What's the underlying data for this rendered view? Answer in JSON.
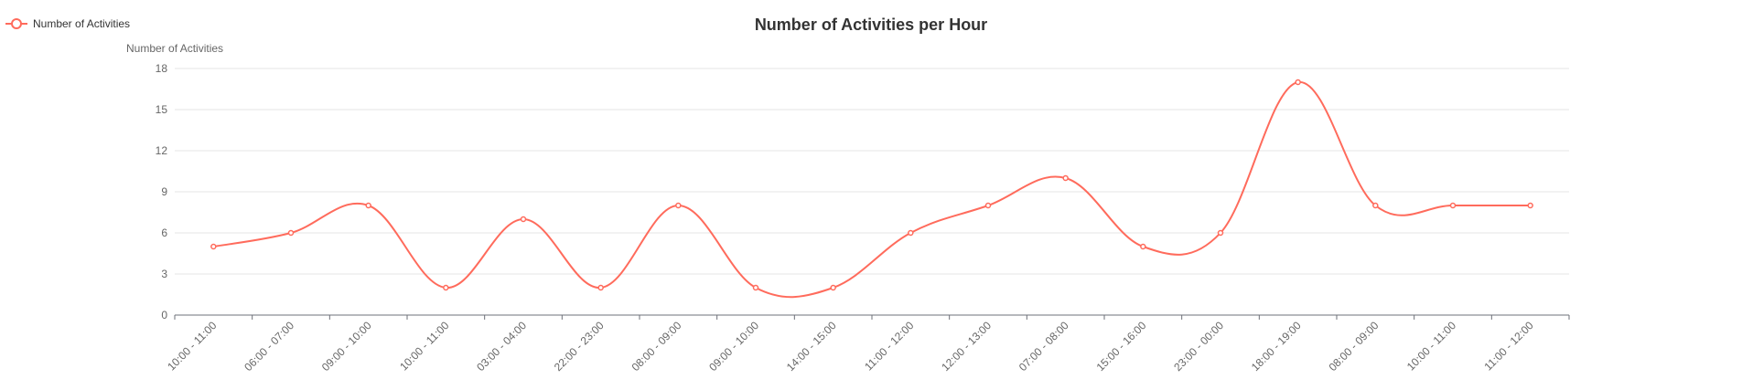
{
  "chart_data": {
    "type": "line",
    "title": "Number of Activities per Hour",
    "xlabel": "",
    "ylabel": "Number of Activities",
    "ylim": [
      0,
      18
    ],
    "yticks": [
      0,
      3,
      6,
      9,
      12,
      15,
      18
    ],
    "grid": true,
    "smooth": true,
    "legend_position": "top-left",
    "categories": [
      "10:00 - 11:00",
      "06:00 - 07:00",
      "09:00 - 10:00",
      "10:00 - 11:00",
      "03:00 - 04:00",
      "22:00 - 23:00",
      "08:00 - 09:00",
      "09:00 - 10:00",
      "14:00 - 15:00",
      "11:00 - 12:00",
      "12:00 - 13:00",
      "07:00 - 08:00",
      "15:00 - 16:00",
      "23:00 - 00:00",
      "18:00 - 19:00",
      "08:00 - 09:00",
      "10:00 - 11:00",
      "11:00 - 12:00"
    ],
    "series": [
      {
        "name": "Number of Activities",
        "color": "#ff6b5c",
        "values": [
          5,
          6,
          8,
          2,
          7,
          2,
          8,
          2,
          2,
          6,
          8,
          10,
          5,
          6,
          17,
          8,
          8,
          8
        ]
      }
    ]
  }
}
